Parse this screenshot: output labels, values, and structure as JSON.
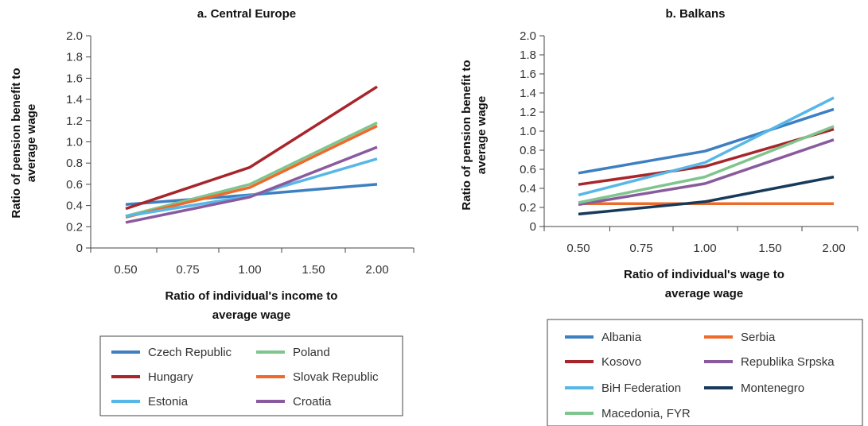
{
  "chart_data": [
    {
      "type": "line",
      "title": "a. Central Europe",
      "ylabel_lines": [
        "Ratio of pension benefit to",
        "average wage"
      ],
      "xlabel_lines": [
        "Ratio of individual's income to",
        "average wage"
      ],
      "categories": [
        "0.50",
        "0.75",
        "1.00",
        "1.50",
        "2.00"
      ],
      "yticks": [
        "0",
        "0.2",
        "0.4",
        "0.6",
        "0.8",
        "1.0",
        "1.2",
        "1.4",
        "1.6",
        "1.8",
        "2.0"
      ],
      "ylim": [
        0,
        2.0
      ],
      "grid": false,
      "legend_position": "bottom",
      "series": [
        {
          "name": "Czech Republic",
          "color": "#3d7fc1",
          "x": [
            0.5,
            1.0,
            2.0
          ],
          "values": [
            0.41,
            0.5,
            0.6
          ]
        },
        {
          "name": "Poland",
          "color": "#7fc58e",
          "x": [
            0.5,
            1.0,
            2.0
          ],
          "values": [
            0.3,
            0.6,
            1.18
          ]
        },
        {
          "name": "Hungary",
          "color": "#a8252c",
          "x": [
            0.5,
            1.0,
            2.0
          ],
          "values": [
            0.37,
            0.76,
            1.52
          ]
        },
        {
          "name": "Slovak Republic",
          "color": "#ee6a2a",
          "x": [
            0.5,
            1.0,
            2.0
          ],
          "values": [
            0.29,
            0.57,
            1.15
          ]
        },
        {
          "name": "Estonia",
          "color": "#57b7e7",
          "x": [
            0.5,
            1.0,
            2.0
          ],
          "values": [
            0.3,
            0.49,
            0.84
          ]
        },
        {
          "name": "Croatia",
          "color": "#8a5a9e",
          "x": [
            0.5,
            1.0,
            2.0
          ],
          "values": [
            0.24,
            0.48,
            0.95
          ]
        }
      ]
    },
    {
      "type": "line",
      "title": "b. Balkans",
      "ylabel_lines": [
        "Ratio of pension benefit to",
        "average wage"
      ],
      "xlabel_lines": [
        "Ratio of individual's wage to",
        "average wage"
      ],
      "categories": [
        "0.50",
        "0.75",
        "1.00",
        "1.50",
        "2.00"
      ],
      "yticks": [
        "0",
        "0.2",
        "0.4",
        "0.6",
        "0.8",
        "1.0",
        "1.2",
        "1.4",
        "1.6",
        "1.8",
        "2.0"
      ],
      "ylim": [
        0,
        2.0
      ],
      "grid": false,
      "legend_position": "bottom",
      "series": [
        {
          "name": "Albania",
          "color": "#3d7fc1",
          "x": [
            0.5,
            1.0,
            2.0
          ],
          "values": [
            0.56,
            0.79,
            1.23
          ]
        },
        {
          "name": "Serbia",
          "color": "#ee6a2a",
          "x": [
            0.5,
            1.0,
            2.0
          ],
          "values": [
            0.24,
            0.24,
            0.24
          ]
        },
        {
          "name": "Kosovo",
          "color": "#a8252c",
          "x": [
            0.5,
            1.0,
            2.0
          ],
          "values": [
            0.44,
            0.63,
            1.02
          ]
        },
        {
          "name": "Republika Srpska",
          "color": "#8a5a9e",
          "x": [
            0.5,
            1.0,
            2.0
          ],
          "values": [
            0.23,
            0.45,
            0.91
          ]
        },
        {
          "name": "BiH Federation",
          "color": "#57b7e7",
          "x": [
            0.5,
            1.0,
            2.0
          ],
          "values": [
            0.33,
            0.67,
            1.35
          ]
        },
        {
          "name": "Montenegro",
          "color": "#173a5b",
          "x": [
            0.5,
            1.0,
            2.0
          ],
          "values": [
            0.13,
            0.26,
            0.52
          ]
        },
        {
          "name": "Macedonia, FYR",
          "color": "#7fc58e",
          "x": [
            0.5,
            1.0,
            2.0
          ],
          "values": [
            0.25,
            0.52,
            1.05
          ]
        }
      ]
    }
  ]
}
